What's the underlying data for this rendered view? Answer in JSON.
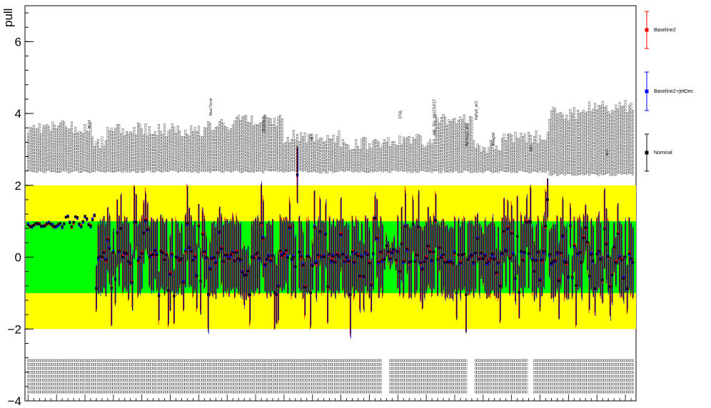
{
  "chart_data": {
    "type": "scatter",
    "ylabel": "pull",
    "ylim": [
      -4,
      7
    ],
    "yticks": [
      -4,
      -2,
      0,
      2,
      4,
      6
    ],
    "ytick_labels": [
      "−4",
      "−2",
      "0",
      "2",
      "4",
      "6"
    ],
    "bands": [
      {
        "name": "2-sigma",
        "range": [
          -2,
          2
        ],
        "color": "#ffff00"
      },
      {
        "name": "1-sigma",
        "range": [
          -1,
          1
        ],
        "color": "#00ff00"
      }
    ],
    "series": [
      {
        "name": "Baseline2",
        "color": "#ff0000"
      },
      {
        "name": "Baseline2-rjetDec",
        "color": "#0000ff"
      },
      {
        "name": "Nominal",
        "color": "#000000"
      }
    ],
    "legend_position": "right",
    "parameter_labels": [
      "MC16",
      "RealTerm",
      "2018data",
      "ALL",
      "ETAL",
      "SME_TES_INSITUFIT",
      "Herwig7_mCC",
      "PwPy8_mCC",
      "Btag50",
      "VPT",
      "mCC"
    ],
    "n_parameters": 320,
    "points_note": "per-parameter pull values and errors are not printed individually in the figure"
  }
}
